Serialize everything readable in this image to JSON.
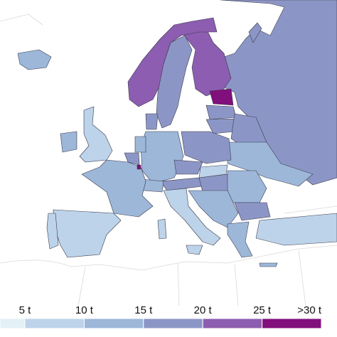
{
  "legend": {
    "labels": [
      "5 t",
      "10 t",
      "15 t",
      "20 t",
      "25 t",
      ">30 t"
    ],
    "colors": [
      "#e3f1f7",
      "#bdd3ea",
      "#9db7d9",
      "#8c96c6",
      "#8c5db0",
      "#810f7c"
    ]
  }
}
